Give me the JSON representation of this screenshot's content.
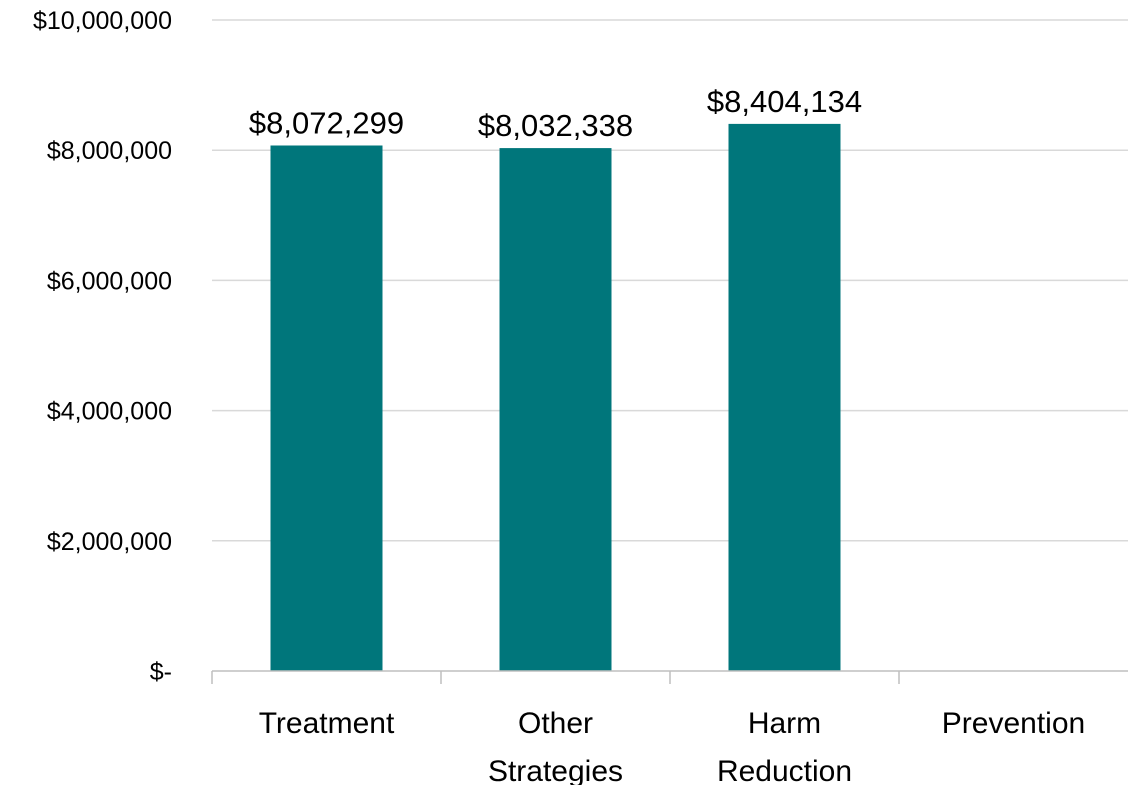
{
  "chart_data": {
    "type": "bar",
    "title": "",
    "xlabel": "",
    "ylabel": "",
    "categories": [
      [
        "Treatment"
      ],
      [
        "Other",
        "Strategies"
      ],
      [
        "Harm",
        "Reduction"
      ],
      [
        "Prevention"
      ]
    ],
    "values": [
      8072299,
      8032338,
      8404134,
      null
    ],
    "data_labels": [
      "$8,072,299",
      "$8,032,338",
      "$8,404,134",
      ""
    ],
    "ylim": [
      0,
      10000000
    ],
    "yticks": [
      0,
      2000000,
      4000000,
      6000000,
      8000000,
      10000000
    ],
    "ytick_labels": [
      "$-",
      "$2,000,000",
      "$4,000,000",
      "$6,000,000",
      "$8,000,000",
      "$10,000,000"
    ],
    "grid": true,
    "legend": "none",
    "colors": {
      "bar": "#00767B",
      "grid": "#D9D9D9",
      "axis": "#BFBFBF"
    }
  }
}
